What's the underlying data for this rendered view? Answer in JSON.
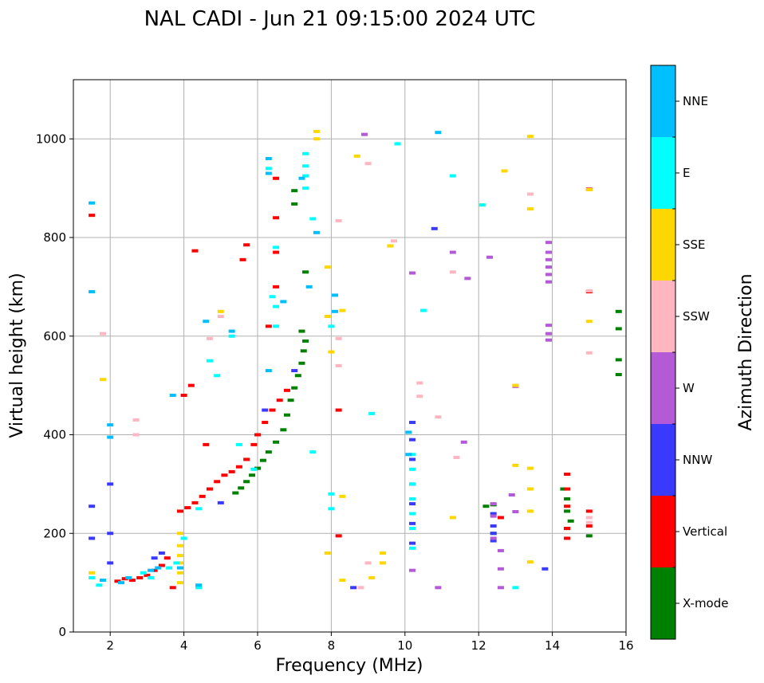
{
  "chart_data": {
    "type": "scatter",
    "title": "NAL CADI - Jun 21 09:15:00 2024 UTC",
    "xlabel": "Frequency (MHz)",
    "ylabel": "Virtual height (km)",
    "xlim": [
      1,
      16
    ],
    "ylim": [
      0,
      1120
    ],
    "xticks": [
      2,
      4,
      6,
      8,
      10,
      12,
      14,
      16
    ],
    "yticks": [
      0,
      200,
      400,
      600,
      800,
      1000
    ],
    "grid": true,
    "colorbar": {
      "label": "Azimuth Direction",
      "categories": [
        {
          "name": "X-mode",
          "color": "#008000"
        },
        {
          "name": "Vertical",
          "color": "#ff0000"
        },
        {
          "name": "NNW",
          "color": "#3a3aff"
        },
        {
          "name": "W",
          "color": "#b45ad6"
        },
        {
          "name": "SSW",
          "color": "#ffb6c1"
        },
        {
          "name": "SSE",
          "color": "#ffd700"
        },
        {
          "name": "E",
          "color": "#00ffff"
        },
        {
          "name": "NNE",
          "color": "#00bfff"
        }
      ]
    },
    "series": [
      {
        "name": "X-mode",
        "points": [
          [
            5.4,
            282
          ],
          [
            5.55,
            292
          ],
          [
            5.7,
            305
          ],
          [
            5.85,
            318
          ],
          [
            6.0,
            332
          ],
          [
            6.15,
            348
          ],
          [
            6.3,
            365
          ],
          [
            6.5,
            385
          ],
          [
            6.7,
            410
          ],
          [
            6.8,
            440
          ],
          [
            6.9,
            470
          ],
          [
            7.0,
            495
          ],
          [
            7.1,
            520
          ],
          [
            7.2,
            545
          ],
          [
            7.25,
            570
          ],
          [
            7.3,
            590
          ],
          [
            7.2,
            610
          ],
          [
            7.3,
            730
          ],
          [
            7.0,
            895
          ],
          [
            7.0,
            868
          ],
          [
            12.4,
            258
          ],
          [
            12.2,
            255
          ],
          [
            12.4,
            200
          ],
          [
            14.3,
            290
          ],
          [
            14.4,
            270
          ],
          [
            14.4,
            245
          ],
          [
            14.5,
            225
          ],
          [
            14.4,
            210
          ],
          [
            15.0,
            195
          ],
          [
            15.8,
            650
          ],
          [
            15.8,
            615
          ],
          [
            15.8,
            552
          ],
          [
            15.8,
            522
          ]
        ]
      },
      {
        "name": "Vertical",
        "points": [
          [
            1.5,
            845
          ],
          [
            2.2,
            103
          ],
          [
            2.4,
            108
          ],
          [
            2.6,
            105
          ],
          [
            2.8,
            110
          ],
          [
            3.0,
            115
          ],
          [
            3.2,
            125
          ],
          [
            3.4,
            135
          ],
          [
            3.55,
            150
          ],
          [
            3.7,
            90
          ],
          [
            3.9,
            245
          ],
          [
            4.1,
            252
          ],
          [
            4.3,
            262
          ],
          [
            4.5,
            275
          ],
          [
            4.7,
            290
          ],
          [
            4.9,
            305
          ],
          [
            5.1,
            318
          ],
          [
            5.3,
            325
          ],
          [
            5.5,
            335
          ],
          [
            5.7,
            350
          ],
          [
            5.9,
            380
          ],
          [
            6.0,
            400
          ],
          [
            6.2,
            425
          ],
          [
            6.4,
            450
          ],
          [
            6.6,
            470
          ],
          [
            6.8,
            490
          ],
          [
            6.3,
            620
          ],
          [
            6.5,
            700
          ],
          [
            6.5,
            770
          ],
          [
            6.5,
            840
          ],
          [
            6.5,
            920
          ],
          [
            5.7,
            785
          ],
          [
            5.6,
            755
          ],
          [
            4.3,
            773
          ],
          [
            4.0,
            480
          ],
          [
            4.2,
            500
          ],
          [
            4.6,
            380
          ],
          [
            8.2,
            195
          ],
          [
            8.2,
            450
          ],
          [
            14.4,
            320
          ],
          [
            14.4,
            290
          ],
          [
            14.4,
            255
          ],
          [
            14.4,
            210
          ],
          [
            14.4,
            190
          ],
          [
            15.0,
            245
          ],
          [
            15.0,
            215
          ],
          [
            15.0,
            690
          ],
          [
            15.0,
            898
          ],
          [
            12.6,
            232
          ]
        ]
      },
      {
        "name": "NNW",
        "points": [
          [
            1.5,
            255
          ],
          [
            1.5,
            190
          ],
          [
            2.0,
            300
          ],
          [
            2.0,
            200
          ],
          [
            2.0,
            140
          ],
          [
            3.2,
            150
          ],
          [
            3.4,
            160
          ],
          [
            5.0,
            262
          ],
          [
            6.2,
            450
          ],
          [
            7.0,
            530
          ],
          [
            10.2,
            425
          ],
          [
            10.2,
            390
          ],
          [
            10.2,
            350
          ],
          [
            10.2,
            300
          ],
          [
            10.2,
            260
          ],
          [
            10.2,
            220
          ],
          [
            10.2,
            180
          ],
          [
            12.4,
            240
          ],
          [
            12.4,
            215
          ],
          [
            12.4,
            200
          ],
          [
            12.4,
            185
          ],
          [
            8.6,
            90
          ],
          [
            13.8,
            128
          ],
          [
            10.8,
            818
          ]
        ]
      },
      {
        "name": "W",
        "points": [
          [
            12.4,
            260
          ],
          [
            12.4,
            235
          ],
          [
            12.4,
            190
          ],
          [
            12.6,
            165
          ],
          [
            12.6,
            128
          ],
          [
            12.6,
            90
          ],
          [
            12.9,
            278
          ],
          [
            13.0,
            244
          ],
          [
            13.0,
            498
          ],
          [
            13.9,
            790
          ],
          [
            13.9,
            770
          ],
          [
            13.9,
            755
          ],
          [
            13.9,
            740
          ],
          [
            13.9,
            725
          ],
          [
            13.9,
            710
          ],
          [
            13.9,
            622
          ],
          [
            13.9,
            605
          ],
          [
            13.9,
            592
          ],
          [
            11.6,
            385
          ],
          [
            11.7,
            717
          ],
          [
            11.3,
            770
          ],
          [
            10.2,
            125
          ],
          [
            10.9,
            90
          ],
          [
            8.9,
            1009
          ],
          [
            12.3,
            760
          ],
          [
            10.2,
            728
          ]
        ]
      },
      {
        "name": "SSW",
        "points": [
          [
            1.8,
            605
          ],
          [
            2.7,
            400
          ],
          [
            2.7,
            430
          ],
          [
            4.7,
            595
          ],
          [
            5.0,
            640
          ],
          [
            8.2,
            540
          ],
          [
            8.2,
            595
          ],
          [
            8.2,
            834
          ],
          [
            9.0,
            950
          ],
          [
            9.7,
            793
          ],
          [
            10.4,
            505
          ],
          [
            10.4,
            478
          ],
          [
            10.9,
            436
          ],
          [
            11.3,
            730
          ],
          [
            11.4,
            354
          ],
          [
            13.4,
            888
          ],
          [
            15.0,
            692
          ],
          [
            15.0,
            566
          ],
          [
            15.0,
            232
          ],
          [
            15.0,
            222
          ],
          [
            9.0,
            140
          ],
          [
            8.8,
            90
          ]
        ]
      },
      {
        "name": "SSE",
        "points": [
          [
            3.9,
            200
          ],
          [
            3.9,
            175
          ],
          [
            3.9,
            155
          ],
          [
            3.9,
            140
          ],
          [
            3.9,
            120
          ],
          [
            3.9,
            100
          ],
          [
            1.5,
            120
          ],
          [
            1.8,
            512
          ],
          [
            5.0,
            650
          ],
          [
            7.9,
            740
          ],
          [
            7.9,
            640
          ],
          [
            7.9,
            160
          ],
          [
            8.0,
            568
          ],
          [
            8.3,
            652
          ],
          [
            8.3,
            275
          ],
          [
            8.3,
            105
          ],
          [
            8.7,
            965
          ],
          [
            9.1,
            110
          ],
          [
            9.4,
            160
          ],
          [
            9.4,
            140
          ],
          [
            9.6,
            783
          ],
          [
            11.3,
            232
          ],
          [
            12.1,
            866
          ],
          [
            12.7,
            935
          ],
          [
            13.0,
            338
          ],
          [
            13.0,
            500
          ],
          [
            13.4,
            1005
          ],
          [
            13.4,
            858
          ],
          [
            13.4,
            332
          ],
          [
            13.4,
            290
          ],
          [
            13.4,
            245
          ],
          [
            13.4,
            142
          ],
          [
            15.0,
            630
          ],
          [
            15.0,
            897
          ],
          [
            7.6,
            1015
          ],
          [
            7.6,
            1000
          ]
        ]
      },
      {
        "name": "E",
        "points": [
          [
            1.5,
            110
          ],
          [
            1.7,
            95
          ],
          [
            2.9,
            120
          ],
          [
            3.1,
            110
          ],
          [
            3.6,
            130
          ],
          [
            3.8,
            140
          ],
          [
            4.0,
            190
          ],
          [
            4.4,
            250
          ],
          [
            4.4,
            90
          ],
          [
            4.7,
            550
          ],
          [
            4.9,
            520
          ],
          [
            5.3,
            600
          ],
          [
            5.5,
            380
          ],
          [
            5.9,
            330
          ],
          [
            6.3,
            940
          ],
          [
            6.4,
            680
          ],
          [
            6.5,
            660
          ],
          [
            6.5,
            620
          ],
          [
            6.5,
            780
          ],
          [
            7.3,
            900
          ],
          [
            7.3,
            925
          ],
          [
            7.3,
            945
          ],
          [
            7.3,
            970
          ],
          [
            7.5,
            365
          ],
          [
            7.5,
            838
          ],
          [
            8.0,
            280
          ],
          [
            8.0,
            250
          ],
          [
            8.0,
            620
          ],
          [
            9.1,
            443
          ],
          [
            9.8,
            990
          ],
          [
            10.2,
            360
          ],
          [
            10.2,
            330
          ],
          [
            10.2,
            300
          ],
          [
            10.2,
            270
          ],
          [
            10.2,
            240
          ],
          [
            10.2,
            210
          ],
          [
            10.2,
            170
          ],
          [
            10.5,
            652
          ],
          [
            11.3,
            925
          ],
          [
            12.1,
            866
          ],
          [
            13.0,
            90
          ]
        ]
      },
      {
        "name": "NNE",
        "points": [
          [
            1.5,
            870
          ],
          [
            1.5,
            690
          ],
          [
            2.0,
            420
          ],
          [
            2.0,
            395
          ],
          [
            1.8,
            105
          ],
          [
            2.3,
            100
          ],
          [
            2.5,
            110
          ],
          [
            3.1,
            125
          ],
          [
            3.3,
            130
          ],
          [
            3.7,
            480
          ],
          [
            3.9,
            130
          ],
          [
            4.4,
            95
          ],
          [
            4.6,
            630
          ],
          [
            5.3,
            610
          ],
          [
            6.3,
            960
          ],
          [
            6.3,
            930
          ],
          [
            6.3,
            530
          ],
          [
            6.7,
            670
          ],
          [
            7.2,
            920
          ],
          [
            7.4,
            700
          ],
          [
            7.6,
            810
          ],
          [
            8.1,
            650
          ],
          [
            8.1,
            683
          ],
          [
            10.1,
            360
          ],
          [
            10.1,
            405
          ],
          [
            10.9,
            1013
          ]
        ]
      }
    ]
  }
}
